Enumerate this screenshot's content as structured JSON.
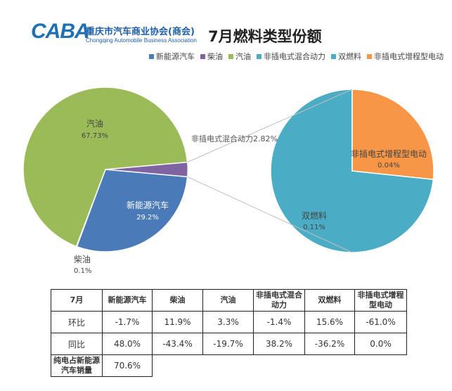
{
  "header": {
    "logo_mark": "CABA",
    "logo_cn": "重庆市汽车商业协会(商会)",
    "logo_en": "Chongqing Automobile Business Association",
    "title": "7月燃料类型份额"
  },
  "legend": [
    {
      "label": "新能源汽车",
      "color": "#4a7ab8"
    },
    {
      "label": "柴油",
      "color": "#7f5fa5"
    },
    {
      "label": "汽油",
      "color": "#9bbb59"
    },
    {
      "label": "非插电式混合动力",
      "color": "#4bacc6"
    },
    {
      "label": "双燃料",
      "color": "#4bacc6"
    },
    {
      "label": "非插电式增程型电动",
      "color": "#f79646"
    }
  ],
  "chart_data": {
    "type": "pie",
    "title": "7月燃料类型份额",
    "main_pie": [
      {
        "name": "新能源汽车",
        "value": 29.2,
        "label": "29.2%",
        "color": "#4a7ab8"
      },
      {
        "name": "柴油",
        "value": 0.1,
        "label": "0.1%",
        "color": "#7f5fa5"
      },
      {
        "name": "汽油",
        "value": 67.73,
        "label": "67.73%",
        "color": "#9bbb59"
      },
      {
        "name": "非插电式混合动力",
        "value": 2.82,
        "label": "2.82%",
        "color": "#8064a2"
      }
    ],
    "breakout_label": {
      "name": "非插电式混合动力",
      "label": "2.82%"
    },
    "secondary_pie": [
      {
        "name": "非插电式增程型电动",
        "value": 0.04,
        "label": "0.04%",
        "color": "#f79646"
      },
      {
        "name": "双燃料",
        "value": 0.11,
        "label": "0.11%",
        "color": "#4bacc6"
      }
    ],
    "legend_position": "top-right"
  },
  "table": {
    "headers": [
      "7月",
      "新能源汽车",
      "柴油",
      "汽油",
      "非插电式混合动力",
      "双燃料",
      "非插电式增程型电动"
    ],
    "rows": [
      {
        "label": "环比",
        "values": [
          "-1.7%",
          "11.9%",
          "3.3%",
          "-1.4%",
          "15.6%",
          "-61.0%"
        ]
      },
      {
        "label": "同比",
        "values": [
          "48.0%",
          "-43.4%",
          "-19.7%",
          "38.2%",
          "-36.2%",
          "0.0%"
        ]
      },
      {
        "label": "纯电占新能源汽车销量",
        "values": [
          "70.6%"
        ]
      }
    ]
  }
}
